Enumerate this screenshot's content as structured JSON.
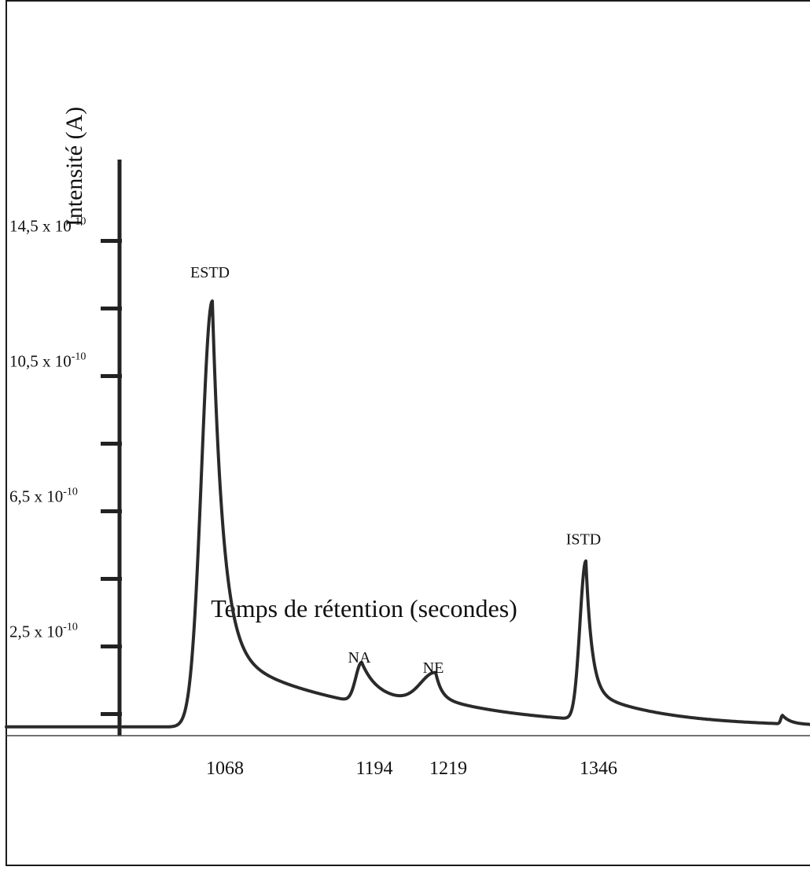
{
  "chart_data": {
    "type": "line",
    "xlabel": "Temps de rétention (secondes)",
    "ylabel": "Intensité (A)",
    "x_ticks": [
      "1068",
      "1194",
      "1219",
      "1346"
    ],
    "y_ticks": [
      {
        "mantissa": "14,5 x 10",
        "exponent": "-10",
        "value": 14.5
      },
      {
        "mantissa": "10,5 x 10",
        "exponent": "-10",
        "value": 10.5
      },
      {
        "mantissa": "6,5 x 10",
        "exponent": "-10",
        "value": 6.5
      },
      {
        "mantissa": "2,5 x 10",
        "exponent": "-10",
        "value": 2.5
      }
    ],
    "y_unit_note": "x 10^-10 A",
    "peaks": [
      {
        "label": "ESTD",
        "x": 1068,
        "height": 12.6
      },
      {
        "label": "NA",
        "x": 1194,
        "height": 1.2
      },
      {
        "label": "NE",
        "x": 1219,
        "height": 0.9
      },
      {
        "label": "ISTD",
        "x": 1346,
        "height": 4.7
      }
    ],
    "grid": false,
    "legend": "none",
    "color": "#2a2a2a"
  }
}
